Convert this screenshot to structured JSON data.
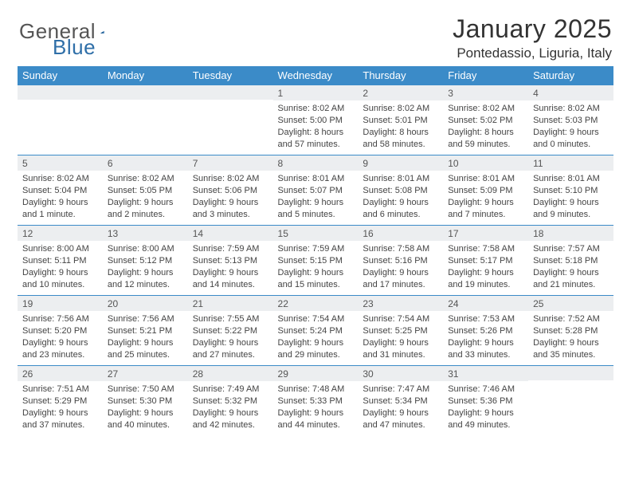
{
  "brand": {
    "name_part1": "General",
    "name_part2": "Blue"
  },
  "title": "January 2025",
  "location": "Pontedassio, Liguria, Italy",
  "colors": {
    "header_bg": "#3b8bc8",
    "header_fg": "#ffffff",
    "daynum_bg": "#eceef0",
    "rule": "#3b8bc8"
  },
  "days_of_week": [
    "Sunday",
    "Monday",
    "Tuesday",
    "Wednesday",
    "Thursday",
    "Friday",
    "Saturday"
  ],
  "weeks": [
    [
      {
        "n": "",
        "sunrise": "",
        "sunset": "",
        "daylight": ""
      },
      {
        "n": "",
        "sunrise": "",
        "sunset": "",
        "daylight": ""
      },
      {
        "n": "",
        "sunrise": "",
        "sunset": "",
        "daylight": ""
      },
      {
        "n": "1",
        "sunrise": "Sunrise: 8:02 AM",
        "sunset": "Sunset: 5:00 PM",
        "daylight": "Daylight: 8 hours and 57 minutes."
      },
      {
        "n": "2",
        "sunrise": "Sunrise: 8:02 AM",
        "sunset": "Sunset: 5:01 PM",
        "daylight": "Daylight: 8 hours and 58 minutes."
      },
      {
        "n": "3",
        "sunrise": "Sunrise: 8:02 AM",
        "sunset": "Sunset: 5:02 PM",
        "daylight": "Daylight: 8 hours and 59 minutes."
      },
      {
        "n": "4",
        "sunrise": "Sunrise: 8:02 AM",
        "sunset": "Sunset: 5:03 PM",
        "daylight": "Daylight: 9 hours and 0 minutes."
      }
    ],
    [
      {
        "n": "5",
        "sunrise": "Sunrise: 8:02 AM",
        "sunset": "Sunset: 5:04 PM",
        "daylight": "Daylight: 9 hours and 1 minute."
      },
      {
        "n": "6",
        "sunrise": "Sunrise: 8:02 AM",
        "sunset": "Sunset: 5:05 PM",
        "daylight": "Daylight: 9 hours and 2 minutes."
      },
      {
        "n": "7",
        "sunrise": "Sunrise: 8:02 AM",
        "sunset": "Sunset: 5:06 PM",
        "daylight": "Daylight: 9 hours and 3 minutes."
      },
      {
        "n": "8",
        "sunrise": "Sunrise: 8:01 AM",
        "sunset": "Sunset: 5:07 PM",
        "daylight": "Daylight: 9 hours and 5 minutes."
      },
      {
        "n": "9",
        "sunrise": "Sunrise: 8:01 AM",
        "sunset": "Sunset: 5:08 PM",
        "daylight": "Daylight: 9 hours and 6 minutes."
      },
      {
        "n": "10",
        "sunrise": "Sunrise: 8:01 AM",
        "sunset": "Sunset: 5:09 PM",
        "daylight": "Daylight: 9 hours and 7 minutes."
      },
      {
        "n": "11",
        "sunrise": "Sunrise: 8:01 AM",
        "sunset": "Sunset: 5:10 PM",
        "daylight": "Daylight: 9 hours and 9 minutes."
      }
    ],
    [
      {
        "n": "12",
        "sunrise": "Sunrise: 8:00 AM",
        "sunset": "Sunset: 5:11 PM",
        "daylight": "Daylight: 9 hours and 10 minutes."
      },
      {
        "n": "13",
        "sunrise": "Sunrise: 8:00 AM",
        "sunset": "Sunset: 5:12 PM",
        "daylight": "Daylight: 9 hours and 12 minutes."
      },
      {
        "n": "14",
        "sunrise": "Sunrise: 7:59 AM",
        "sunset": "Sunset: 5:13 PM",
        "daylight": "Daylight: 9 hours and 14 minutes."
      },
      {
        "n": "15",
        "sunrise": "Sunrise: 7:59 AM",
        "sunset": "Sunset: 5:15 PM",
        "daylight": "Daylight: 9 hours and 15 minutes."
      },
      {
        "n": "16",
        "sunrise": "Sunrise: 7:58 AM",
        "sunset": "Sunset: 5:16 PM",
        "daylight": "Daylight: 9 hours and 17 minutes."
      },
      {
        "n": "17",
        "sunrise": "Sunrise: 7:58 AM",
        "sunset": "Sunset: 5:17 PM",
        "daylight": "Daylight: 9 hours and 19 minutes."
      },
      {
        "n": "18",
        "sunrise": "Sunrise: 7:57 AM",
        "sunset": "Sunset: 5:18 PM",
        "daylight": "Daylight: 9 hours and 21 minutes."
      }
    ],
    [
      {
        "n": "19",
        "sunrise": "Sunrise: 7:56 AM",
        "sunset": "Sunset: 5:20 PM",
        "daylight": "Daylight: 9 hours and 23 minutes."
      },
      {
        "n": "20",
        "sunrise": "Sunrise: 7:56 AM",
        "sunset": "Sunset: 5:21 PM",
        "daylight": "Daylight: 9 hours and 25 minutes."
      },
      {
        "n": "21",
        "sunrise": "Sunrise: 7:55 AM",
        "sunset": "Sunset: 5:22 PM",
        "daylight": "Daylight: 9 hours and 27 minutes."
      },
      {
        "n": "22",
        "sunrise": "Sunrise: 7:54 AM",
        "sunset": "Sunset: 5:24 PM",
        "daylight": "Daylight: 9 hours and 29 minutes."
      },
      {
        "n": "23",
        "sunrise": "Sunrise: 7:54 AM",
        "sunset": "Sunset: 5:25 PM",
        "daylight": "Daylight: 9 hours and 31 minutes."
      },
      {
        "n": "24",
        "sunrise": "Sunrise: 7:53 AM",
        "sunset": "Sunset: 5:26 PM",
        "daylight": "Daylight: 9 hours and 33 minutes."
      },
      {
        "n": "25",
        "sunrise": "Sunrise: 7:52 AM",
        "sunset": "Sunset: 5:28 PM",
        "daylight": "Daylight: 9 hours and 35 minutes."
      }
    ],
    [
      {
        "n": "26",
        "sunrise": "Sunrise: 7:51 AM",
        "sunset": "Sunset: 5:29 PM",
        "daylight": "Daylight: 9 hours and 37 minutes."
      },
      {
        "n": "27",
        "sunrise": "Sunrise: 7:50 AM",
        "sunset": "Sunset: 5:30 PM",
        "daylight": "Daylight: 9 hours and 40 minutes."
      },
      {
        "n": "28",
        "sunrise": "Sunrise: 7:49 AM",
        "sunset": "Sunset: 5:32 PM",
        "daylight": "Daylight: 9 hours and 42 minutes."
      },
      {
        "n": "29",
        "sunrise": "Sunrise: 7:48 AM",
        "sunset": "Sunset: 5:33 PM",
        "daylight": "Daylight: 9 hours and 44 minutes."
      },
      {
        "n": "30",
        "sunrise": "Sunrise: 7:47 AM",
        "sunset": "Sunset: 5:34 PM",
        "daylight": "Daylight: 9 hours and 47 minutes."
      },
      {
        "n": "31",
        "sunrise": "Sunrise: 7:46 AM",
        "sunset": "Sunset: 5:36 PM",
        "daylight": "Daylight: 9 hours and 49 minutes."
      },
      {
        "n": "",
        "sunrise": "",
        "sunset": "",
        "daylight": ""
      }
    ]
  ]
}
